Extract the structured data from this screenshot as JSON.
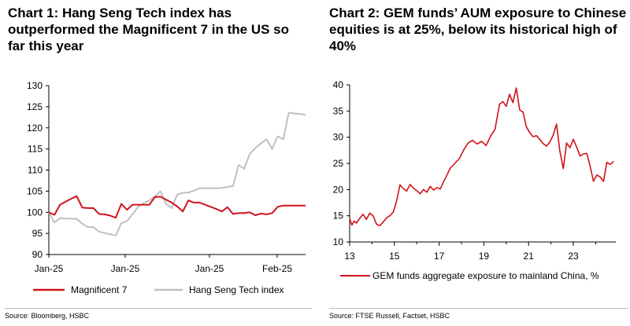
{
  "chart_data": [
    {
      "type": "line",
      "title": "Chart 1: Hang Seng Tech index has outperformed the Magnificent 7 in the US so far this year",
      "x_tick_labels": [
        "Jan-25",
        "Jan-25",
        "Jan-25",
        "Feb-25"
      ],
      "ylim": [
        90,
        130
      ],
      "yticks": [
        90,
        95,
        100,
        105,
        110,
        115,
        120,
        125,
        130
      ],
      "grid": false,
      "legend_position": "bottom",
      "x": [
        0,
        1,
        2,
        3,
        4,
        5,
        6,
        7,
        8,
        9,
        10,
        11,
        12,
        13,
        14,
        15,
        16,
        17,
        18,
        19,
        20,
        21,
        22,
        23,
        24,
        25,
        26,
        27,
        28,
        29,
        30,
        31,
        32,
        33,
        34,
        35,
        36,
        37,
        38,
        39,
        40,
        41,
        42,
        43,
        44,
        45,
        46
      ],
      "series": [
        {
          "name": "Magnificent 7",
          "color": "#d0121b",
          "values": [
            100.0,
            99.4,
            101.8,
            102.5,
            103.2,
            103.8,
            101.1,
            101.0,
            101.0,
            99.6,
            99.5,
            99.2,
            98.7,
            102.0,
            100.6,
            101.8,
            101.8,
            101.8,
            101.8,
            103.6,
            103.7,
            103.0,
            102.3,
            101.4,
            100.2,
            102.8,
            102.3,
            102.3,
            101.8,
            101.3,
            100.8,
            100.2,
            101.2,
            99.6,
            99.8,
            99.8,
            100.0,
            99.3,
            99.7,
            99.5,
            99.8,
            101.3,
            101.6,
            101.6,
            101.6,
            101.6,
            101.6
          ]
        },
        {
          "name": "Hang Seng Tech index",
          "color": "#c0c0c0",
          "values": [
            100.0,
            97.6,
            98.6,
            98.5,
            98.5,
            98.4,
            97.3,
            96.5,
            96.5,
            95.4,
            95.1,
            94.8,
            94.5,
            97.4,
            97.9,
            99.5,
            101.3,
            102.2,
            102.8,
            103.8,
            105.0,
            102.0,
            101.0,
            104.2,
            104.6,
            104.7,
            105.1,
            105.7,
            105.7,
            105.7,
            105.7,
            105.8,
            106.0,
            106.2,
            111.2,
            110.3,
            113.8,
            115.2,
            116.3,
            117.3,
            115.0,
            118.0,
            117.3,
            123.6,
            123.4,
            123.3,
            123.1
          ]
        }
      ]
    },
    {
      "type": "line",
      "title": "Chart 2: GEM funds’ AUM exposure to Chinese equities is at 25%, below its historical high of 40%",
      "x_tick_labels": [
        "13",
        "15",
        "17",
        "19",
        "21",
        "23"
      ],
      "xlim": [
        13,
        24.9
      ],
      "ylim": [
        10,
        40
      ],
      "yticks": [
        10,
        15,
        20,
        25,
        30,
        35,
        40
      ],
      "grid": false,
      "legend_position": "bottom",
      "series": [
        {
          "name": "GEM funds aggregate exposure to mainland China, %",
          "color": "#d0121b",
          "x": [
            13.0,
            13.1,
            13.2,
            13.3,
            13.45,
            13.6,
            13.75,
            13.9,
            14.05,
            14.2,
            14.35,
            14.5,
            14.65,
            14.8,
            14.95,
            15.1,
            15.25,
            15.4,
            15.55,
            15.7,
            15.85,
            16.0,
            16.15,
            16.3,
            16.45,
            16.6,
            16.75,
            16.9,
            17.05,
            17.2,
            17.35,
            17.5,
            17.7,
            17.9,
            18.1,
            18.3,
            18.5,
            18.7,
            18.9,
            19.1,
            19.3,
            19.5,
            19.7,
            19.85,
            20.0,
            20.15,
            20.3,
            20.45,
            20.6,
            20.75,
            20.9,
            21.05,
            21.2,
            21.35,
            21.5,
            21.65,
            21.8,
            21.95,
            22.1,
            22.25,
            22.4,
            22.55,
            22.7,
            22.85,
            23.0,
            23.15,
            23.3,
            23.45,
            23.6,
            23.75,
            23.9,
            24.05,
            24.2,
            24.35,
            24.5,
            24.65,
            24.8
          ],
          "y": [
            14.5,
            13.2,
            14.0,
            13.6,
            14.5,
            15.3,
            14.3,
            15.5,
            15.0,
            13.4,
            13.1,
            13.8,
            14.6,
            15.0,
            15.7,
            17.8,
            20.9,
            20.2,
            19.7,
            21.0,
            20.3,
            19.8,
            19.2,
            20.0,
            19.5,
            20.6,
            19.9,
            20.4,
            20.1,
            21.5,
            22.8,
            24.1,
            25.0,
            25.9,
            27.6,
            28.9,
            29.4,
            28.7,
            29.2,
            28.4,
            30.2,
            31.5,
            36.3,
            36.8,
            35.9,
            38.2,
            36.6,
            39.4,
            35.2,
            34.8,
            32.0,
            30.9,
            30.1,
            30.3,
            29.6,
            28.8,
            28.3,
            29.1,
            30.4,
            32.5,
            27.3,
            24.0,
            28.9,
            28.0,
            29.6,
            28.1,
            26.4,
            26.8,
            26.9,
            24.5,
            21.6,
            22.8,
            22.4,
            21.6,
            25.2,
            24.8,
            25.4
          ]
        }
      ]
    }
  ],
  "panel1": {
    "source": "Source: Bloomberg, HSBC"
  },
  "panel2": {
    "source": "Source: FTSE Russell, Factset, HSBC"
  }
}
